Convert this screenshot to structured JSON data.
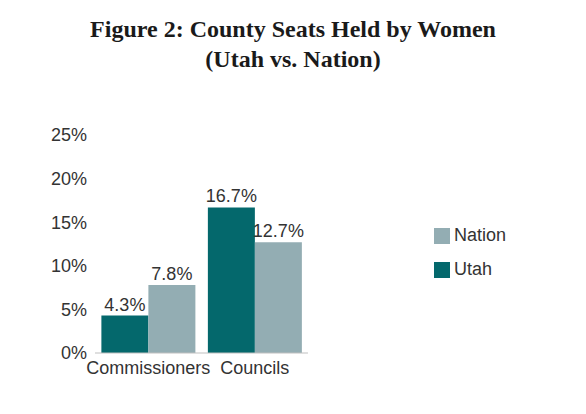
{
  "chart_data": {
    "type": "bar",
    "title": "Figure 2: County Seats Held by Women\n(Utah vs. Nation)",
    "categories": [
      "Commissioners",
      "Councils"
    ],
    "series": [
      {
        "name": "Utah",
        "color": "#04686c",
        "values": [
          4.3,
          16.7
        ],
        "value_labels": [
          "4.3%",
          "16.7%"
        ]
      },
      {
        "name": "Nation",
        "color": "#93adb3",
        "values": [
          7.8,
          12.7
        ],
        "value_labels": [
          "7.8%",
          "12.7%"
        ]
      }
    ],
    "ylim": [
      0,
      25
    ],
    "yticks": [
      {
        "value": 0,
        "label": "0%"
      },
      {
        "value": 5,
        "label": "5%"
      },
      {
        "value": 10,
        "label": "10%"
      },
      {
        "value": 15,
        "label": "15%"
      },
      {
        "value": 20,
        "label": "20%"
      },
      {
        "value": 25,
        "label": "25%"
      }
    ],
    "data_labels": true,
    "legend": "right",
    "grid": false
  }
}
